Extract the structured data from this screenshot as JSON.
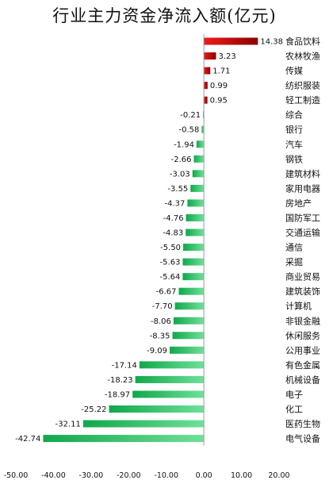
{
  "chart_data": {
    "type": "bar",
    "orientation": "horizontal",
    "title": "行业主力资金净流入额(亿元)",
    "xlabel": "",
    "ylabel": "",
    "xlim": [
      -50,
      20
    ],
    "xticks": [
      "-50.00",
      "-40.00",
      "-30.00",
      "-20.00",
      "-10.00",
      "0.00",
      "10.00",
      "20.00"
    ],
    "grid": false,
    "legend": "none",
    "colors": {
      "positive": "#c40a0a",
      "negative": "#21b35a"
    },
    "categories": [
      "食品饮料",
      "农林牧渔",
      "传媒",
      "纺织服装",
      "轻工制造",
      "综合",
      "银行",
      "汽车",
      "钢铁",
      "建筑材料",
      "家用电器",
      "房地产",
      "国防军工",
      "交通运输",
      "通信",
      "采掘",
      "商业贸易",
      "建筑装饰",
      "计算机",
      "非银金融",
      "休闲服务",
      "公用事业",
      "有色金属",
      "机械设备",
      "电子",
      "化工",
      "医药生物",
      "电气设备"
    ],
    "values": [
      14.38,
      3.23,
      1.71,
      0.99,
      0.95,
      -0.21,
      -0.58,
      -1.94,
      -2.66,
      -3.03,
      -3.55,
      -4.37,
      -4.76,
      -4.83,
      -5.5,
      -5.63,
      -5.64,
      -6.67,
      -7.7,
      -8.06,
      -8.35,
      -9.09,
      -17.14,
      -18.23,
      -18.97,
      -25.22,
      -32.11,
      -42.74
    ],
    "value_labels": [
      "14.38",
      "3.23",
      "1.71",
      "0.99",
      "0.95",
      "-0.21",
      "-0.58",
      "-1.94",
      "-2.66",
      "-3.03",
      "-3.55",
      "-4.37",
      "-4.76",
      "-4.83",
      "-5.50",
      "-5.63",
      "-5.64",
      "-6.67",
      "-7.70",
      "-8.06",
      "-8.35",
      "-9.09",
      "-17.14",
      "-18.23",
      "-18.97",
      "-25.22",
      "-32.11",
      "-42.74"
    ]
  }
}
